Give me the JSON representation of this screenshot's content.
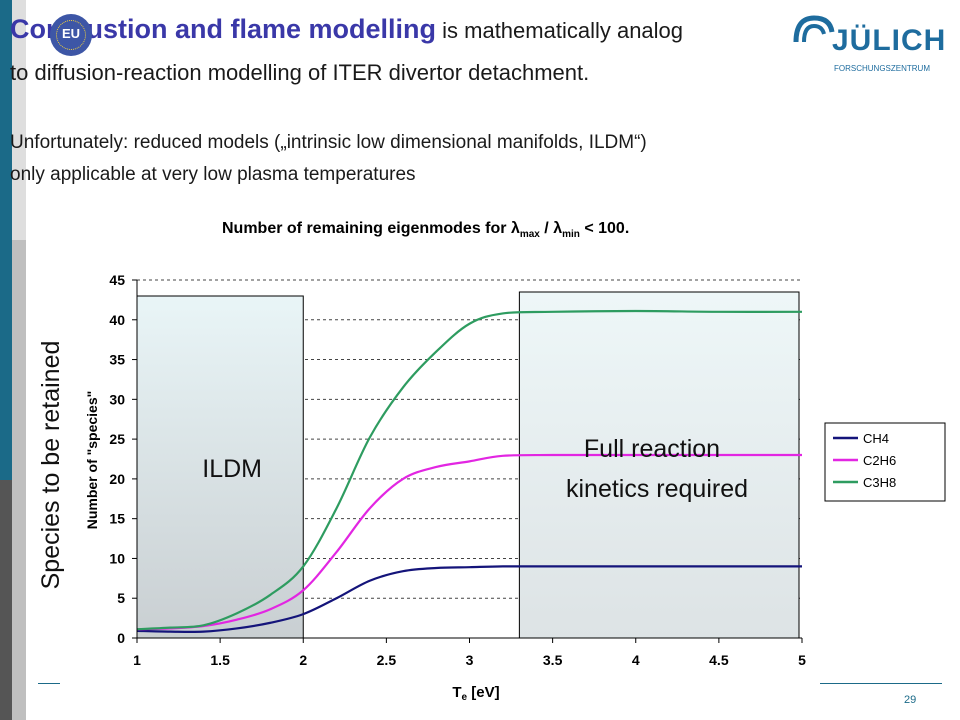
{
  "slide": {
    "title_bold": "Combustion and flame modelling",
    "title_rest": " is mathematically analog",
    "line2": "to diffusion-reaction modelling of ITER divertor detachment.",
    "line3": "Unfortunately: reduced models („intrinsic low dimensional manifolds, ILDM“)",
    "line4": "only applicable at very low plasma temperatures",
    "logo_text": "JÜLICH",
    "logo_sub": "FORSCHUNGSZENTRUM",
    "eu_text": "EU",
    "page_number": "29"
  },
  "chart_data": {
    "type": "line",
    "title_prefix": "Number of remaining eigenmodes for ",
    "title_suffix": " < 100.",
    "lambda_symbol": "λ",
    "lambda_max_sub": "max",
    "lambda_min_sub": "min",
    "title_slash": " / ",
    "xlabel_main": "T",
    "xlabel_sub": "e",
    "xlabel_rest": " [eV]",
    "ylabel": "Number of \"species\"",
    "side_label": "Species to be retained",
    "xlim": [
      1,
      5
    ],
    "ylim": [
      0,
      45
    ],
    "x_ticks": [
      "1",
      "1.5",
      "2",
      "2.5",
      "3",
      "3.5",
      "4",
      "4.5",
      "5"
    ],
    "y_ticks": [
      "0",
      "5",
      "10",
      "15",
      "20",
      "25",
      "30",
      "35",
      "40",
      "45"
    ],
    "grid": true,
    "legend_position": "right",
    "regions": [
      {
        "label": "ILDM",
        "x_start": 1.0,
        "x_end": 2.0
      },
      {
        "label_line1": "Full reaction",
        "label_line2": "kinetics required",
        "x_start": 3.3,
        "x_end": 5.0
      }
    ],
    "series": [
      {
        "name": "CH4",
        "color": "#14147a",
        "points": [
          [
            1.0,
            0.9
          ],
          [
            1.2,
            0.8
          ],
          [
            1.4,
            0.8
          ],
          [
            1.6,
            1.2
          ],
          [
            1.8,
            1.9
          ],
          [
            2.0,
            3.0
          ],
          [
            2.2,
            5.0
          ],
          [
            2.4,
            7.2
          ],
          [
            2.6,
            8.4
          ],
          [
            2.8,
            8.8
          ],
          [
            3.0,
            8.9
          ],
          [
            3.2,
            9.0
          ],
          [
            3.5,
            9.0
          ],
          [
            4.0,
            9.0
          ],
          [
            4.5,
            9.0
          ],
          [
            5.0,
            9.0
          ]
        ]
      },
      {
        "name": "C2H6",
        "color": "#e226e2",
        "points": [
          [
            1.0,
            1.1
          ],
          [
            1.2,
            1.2
          ],
          [
            1.4,
            1.5
          ],
          [
            1.6,
            2.3
          ],
          [
            1.8,
            3.6
          ],
          [
            2.0,
            6.0
          ],
          [
            2.2,
            10.8
          ],
          [
            2.4,
            16.3
          ],
          [
            2.6,
            20.0
          ],
          [
            2.8,
            21.5
          ],
          [
            3.0,
            22.2
          ],
          [
            3.2,
            22.9
          ],
          [
            3.5,
            23.0
          ],
          [
            4.0,
            23.0
          ],
          [
            4.5,
            23.0
          ],
          [
            5.0,
            23.0
          ]
        ]
      },
      {
        "name": "C3H8",
        "color": "#2e9c60",
        "points": [
          [
            1.0,
            1.1
          ],
          [
            1.2,
            1.3
          ],
          [
            1.4,
            1.6
          ],
          [
            1.6,
            3.1
          ],
          [
            1.8,
            5.4
          ],
          [
            2.0,
            9.0
          ],
          [
            2.2,
            16.3
          ],
          [
            2.4,
            25.2
          ],
          [
            2.6,
            31.5
          ],
          [
            2.8,
            36.0
          ],
          [
            3.0,
            39.5
          ],
          [
            3.2,
            40.8
          ],
          [
            3.5,
            41.0
          ],
          [
            4.0,
            41.1
          ],
          [
            4.5,
            41.0
          ],
          [
            5.0,
            41.0
          ]
        ]
      }
    ]
  }
}
